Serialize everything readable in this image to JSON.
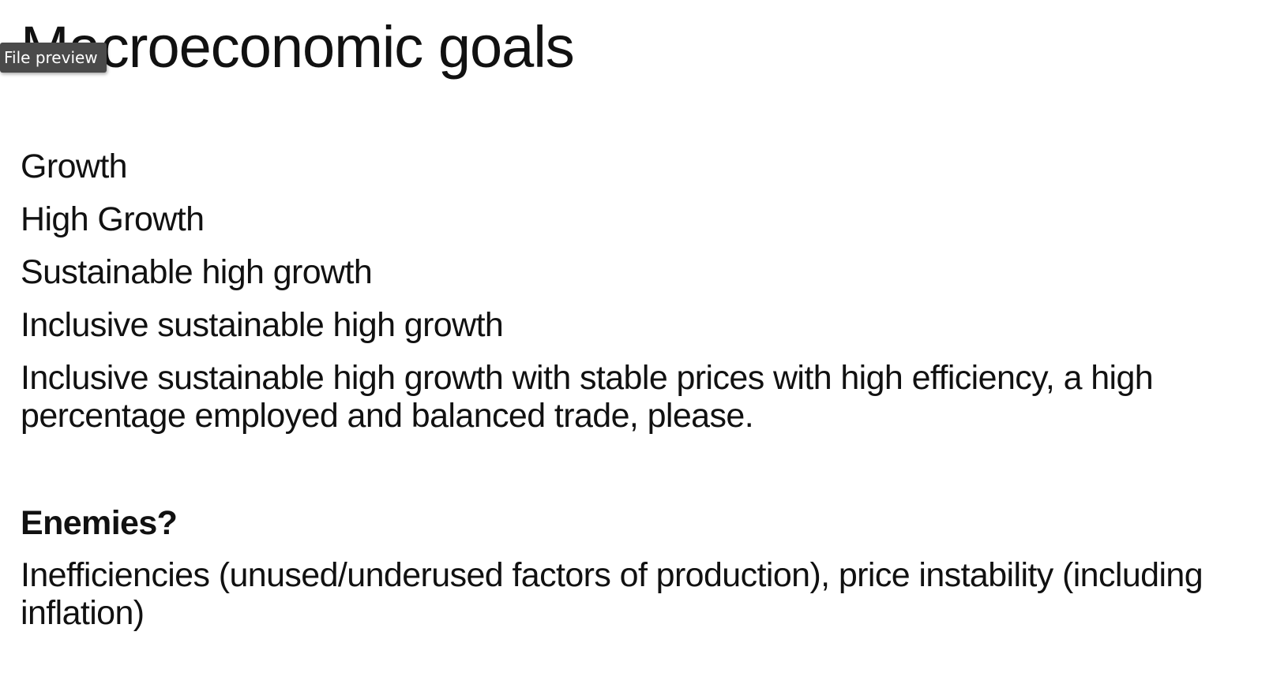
{
  "tooltip": {
    "label": "File preview"
  },
  "slide": {
    "title": "Macroeconomic goals",
    "lines": [
      "Growth",
      "High Growth",
      "Sustainable high growth",
      "Inclusive sustainable high growth",
      "Inclusive sustainable high growth with stable prices with high efficiency, a high percentage employed and balanced trade, please."
    ],
    "enemies_heading": "Enemies?",
    "enemies_detail": "Inefficiencies (unused/underused factors of production), price instability (including inflation)"
  }
}
